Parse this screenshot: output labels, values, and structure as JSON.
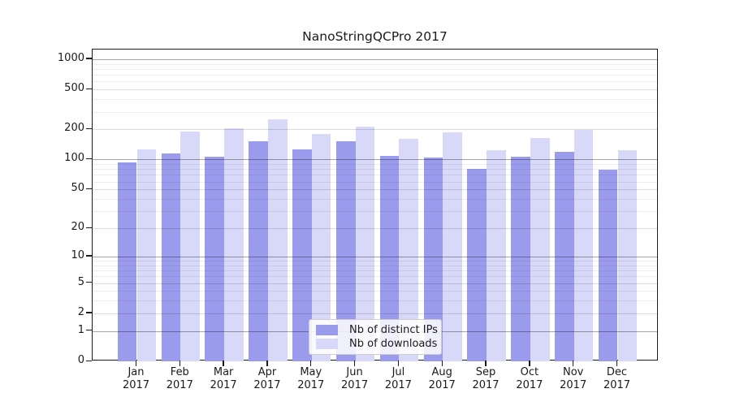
{
  "figure": {
    "background": "#ffffff",
    "axis_color": "#1a1a1a",
    "text_color": "#1a1a1a"
  },
  "chart_data": {
    "type": "bar",
    "title": "NanoStringQCPro 2017",
    "categories": [
      "Jan 2017",
      "Feb 2017",
      "Mar 2017",
      "Apr 2017",
      "May 2017",
      "Jun 2017",
      "Jul 2017",
      "Aug 2017",
      "Sep 2017",
      "Oct 2017",
      "Nov 2017",
      "Dec 2017"
    ],
    "series": [
      {
        "name": "Nb of distinct IPs",
        "color": "#9b9bee",
        "values": [
          93,
          116,
          107,
          151,
          126,
          153,
          109,
          105,
          80,
          107,
          119,
          79
        ]
      },
      {
        "name": "Nb of downloads",
        "color": "#d8d8f8",
        "values": [
          126,
          190,
          204,
          254,
          180,
          212,
          161,
          186,
          123,
          165,
          199,
          125
        ]
      }
    ],
    "yscale": "log10(value+1)",
    "ylim": [
      0,
      1245
    ],
    "yticks": [
      0,
      1,
      2,
      5,
      10,
      20,
      50,
      100,
      200,
      500,
      1000
    ],
    "grid": {
      "major_values": [
        1,
        10,
        100,
        1000
      ],
      "mid_values": [
        2,
        5,
        20,
        50,
        200,
        500
      ],
      "minor_values": [
        3,
        4,
        6,
        7,
        8,
        9,
        30,
        40,
        60,
        70,
        80,
        90,
        300,
        400,
        600,
        700,
        800,
        900
      ],
      "major_color": "rgba(0,0,0,0.35)",
      "mid_color": "rgba(0,0,0,0.14)",
      "minor_color": "rgba(0,0,0,0.07)",
      "on_top_of_bars": true
    },
    "legend": {
      "position": "lower-center",
      "entries": [
        "Nb of distinct IPs",
        "Nb of downloads"
      ]
    }
  }
}
